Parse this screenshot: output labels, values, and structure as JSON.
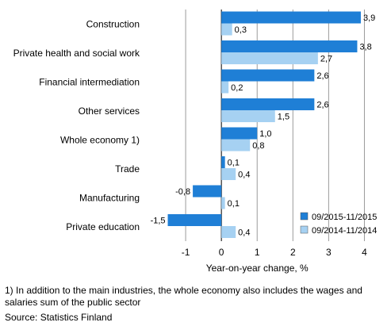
{
  "chart_data": {
    "type": "bar",
    "orientation": "horizontal",
    "categories": [
      "Construction",
      "Private health and social work",
      "Financial intermediation",
      "Other services",
      "Whole economy 1)",
      "Trade",
      "Manufacturing",
      "Private education"
    ],
    "series": [
      {
        "name": "09/2015-11/2015",
        "color": "#1f7fd6",
        "values": [
          3.9,
          3.8,
          2.6,
          2.6,
          1.0,
          0.1,
          -0.8,
          -1.5
        ],
        "labels": [
          "3,9",
          "3,8",
          "2,6",
          "2,6",
          "1,0",
          "0,1",
          "-0,8",
          "-1,5"
        ]
      },
      {
        "name": "09/2014-11/2014",
        "color": "#a6d1f2",
        "values": [
          0.3,
          2.7,
          0.2,
          1.5,
          0.8,
          0.4,
          0.1,
          0.4
        ],
        "labels": [
          "0,3",
          "2,7",
          "0,2",
          "1,5",
          "0,8",
          "0,4",
          "0,1",
          "0,4"
        ]
      }
    ],
    "xlim": [
      -2,
      4.5
    ],
    "xticks": [
      -1,
      0,
      1,
      2,
      3,
      4
    ],
    "xtick_labels": [
      "-1",
      "0",
      "1",
      "2",
      "3",
      "4"
    ],
    "xlabel": "Year-on-year change, %",
    "grid": true,
    "legend_position": "bottom-right"
  },
  "footnote": "1) In addition to the main industries, the whole economy also includes the wages and salaries sum of the public sector",
  "source": "Source: Statistics Finland"
}
